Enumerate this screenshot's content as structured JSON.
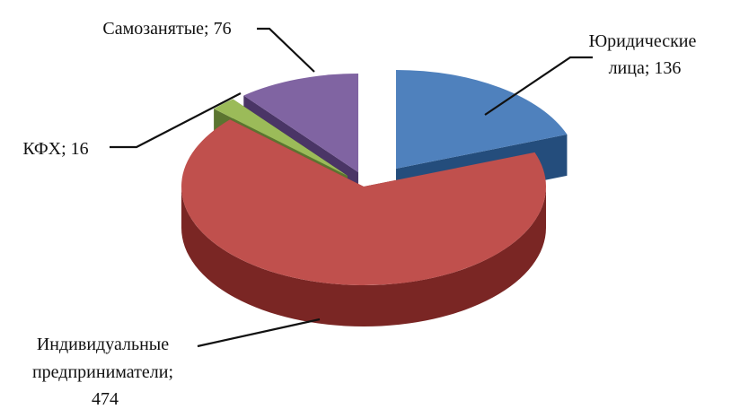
{
  "chart_data": {
    "type": "pie",
    "style": "3d-exploded",
    "title": "",
    "slices": [
      {
        "label": "Юридические лица",
        "value": 136,
        "label_lines": [
          "Юридические",
          "лица; 136"
        ],
        "color": "#4F81BD",
        "side": "#244D7C"
      },
      {
        "label": "Индивидуальные предприниматели",
        "value": 474,
        "label_lines": [
          "Индивидуальные",
          "предприниматели;",
          "474"
        ],
        "color": "#C0504D",
        "side": "#7A2624"
      },
      {
        "label": "КФХ",
        "value": 16,
        "label_lines": [
          "КФХ; 16"
        ],
        "color": "#9BBB59",
        "side": "#5B7530"
      },
      {
        "label": "Самозанятые",
        "value": 76,
        "label_lines": [
          "Самозанятые; 76"
        ],
        "color": "#8064A2",
        "side": "#4A3566"
      }
    ]
  }
}
